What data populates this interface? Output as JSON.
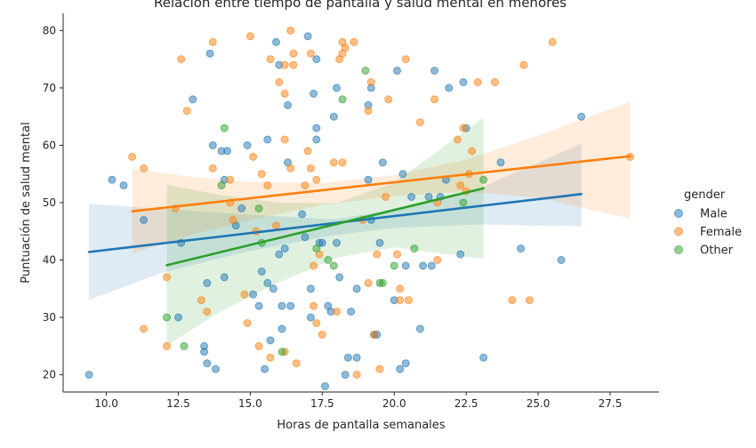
{
  "chart_data": {
    "type": "scatter",
    "title": "Relación entre tiempo de pantalla y salud mental en menores",
    "xlabel": "Horas de pantalla semanales",
    "ylabel": "Puntuación de salud mental",
    "xlim": [
      8.5,
      29.2
    ],
    "ylim": [
      17,
      83
    ],
    "xticks": [
      10.0,
      12.5,
      15.0,
      17.5,
      20.0,
      22.5,
      25.0,
      27.5
    ],
    "xtick_labels": [
      "10.0",
      "12.5",
      "15.0",
      "17.5",
      "20.0",
      "22.5",
      "25.0",
      "27.5"
    ],
    "yticks": [
      20,
      30,
      40,
      50,
      60,
      70,
      80
    ],
    "ytick_labels": [
      "20",
      "30",
      "40",
      "50",
      "60",
      "70",
      "80"
    ],
    "grid": false,
    "legend": {
      "title": "gender",
      "placement": "right"
    },
    "series": [
      {
        "name": "Male",
        "color": "#1f77b4",
        "points": [
          [
            9.4,
            20
          ],
          [
            10.2,
            54
          ],
          [
            10.6,
            53
          ],
          [
            11.3,
            47
          ],
          [
            12.5,
            30
          ],
          [
            12.6,
            43
          ],
          [
            13.0,
            68
          ],
          [
            13.4,
            24
          ],
          [
            13.4,
            25
          ],
          [
            13.5,
            36
          ],
          [
            13.5,
            22
          ],
          [
            13.6,
            76
          ],
          [
            13.7,
            60
          ],
          [
            13.8,
            21
          ],
          [
            14.0,
            59
          ],
          [
            14.1,
            37
          ],
          [
            14.1,
            54
          ],
          [
            14.2,
            59
          ],
          [
            14.5,
            46
          ],
          [
            14.7,
            49
          ],
          [
            14.9,
            60
          ],
          [
            15.1,
            34
          ],
          [
            15.3,
            32
          ],
          [
            15.4,
            38
          ],
          [
            15.5,
            21
          ],
          [
            15.6,
            61
          ],
          [
            15.6,
            36
          ],
          [
            15.7,
            26
          ],
          [
            15.8,
            35
          ],
          [
            15.9,
            78
          ],
          [
            16.0,
            41
          ],
          [
            16.0,
            74
          ],
          [
            16.1,
            28
          ],
          [
            16.1,
            32
          ],
          [
            16.2,
            42
          ],
          [
            16.3,
            67
          ],
          [
            16.3,
            57
          ],
          [
            16.4,
            32
          ],
          [
            16.8,
            48
          ],
          [
            16.9,
            44
          ],
          [
            17.0,
            79
          ],
          [
            17.1,
            35
          ],
          [
            17.1,
            30
          ],
          [
            17.2,
            69
          ],
          [
            17.3,
            75
          ],
          [
            17.3,
            61
          ],
          [
            17.3,
            63
          ],
          [
            17.4,
            43
          ],
          [
            17.5,
            43
          ],
          [
            17.6,
            18
          ],
          [
            17.7,
            32
          ],
          [
            17.8,
            31
          ],
          [
            17.9,
            65
          ],
          [
            18.0,
            70
          ],
          [
            18.0,
            43
          ],
          [
            18.1,
            37
          ],
          [
            18.3,
            20
          ],
          [
            18.4,
            23
          ],
          [
            18.5,
            31
          ],
          [
            18.7,
            23
          ],
          [
            18.7,
            35
          ],
          [
            19.1,
            67
          ],
          [
            19.1,
            54
          ],
          [
            19.2,
            70
          ],
          [
            19.2,
            47
          ],
          [
            19.3,
            27
          ],
          [
            19.4,
            27
          ],
          [
            19.5,
            43
          ],
          [
            19.6,
            57
          ],
          [
            20.0,
            33
          ],
          [
            20.1,
            73
          ],
          [
            20.2,
            21
          ],
          [
            20.3,
            55
          ],
          [
            20.4,
            22
          ],
          [
            20.4,
            39
          ],
          [
            20.6,
            51
          ],
          [
            20.9,
            28
          ],
          [
            21.0,
            39
          ],
          [
            21.2,
            51
          ],
          [
            21.3,
            39
          ],
          [
            21.4,
            73
          ],
          [
            21.6,
            51
          ],
          [
            21.8,
            54
          ],
          [
            21.9,
            70
          ],
          [
            22.3,
            41
          ],
          [
            22.4,
            71
          ],
          [
            22.5,
            63
          ],
          [
            23.1,
            23
          ],
          [
            23.7,
            57
          ],
          [
            24.4,
            42
          ],
          [
            25.8,
            40
          ],
          [
            26.5,
            65
          ]
        ],
        "trend": [
          [
            9.4,
            41.4
          ],
          [
            26.5,
            51.5
          ]
        ],
        "band_upper": [
          [
            9.4,
            49.8
          ],
          [
            12.0,
            48.9
          ],
          [
            15.0,
            47.9
          ],
          [
            17.9,
            47.1
          ],
          [
            20.0,
            48.8
          ],
          [
            23.0,
            52.6
          ],
          [
            26.5,
            60.3
          ]
        ],
        "band_lower": [
          [
            9.4,
            33.1
          ],
          [
            12.0,
            37.9
          ],
          [
            15.0,
            41.6
          ],
          [
            17.9,
            44.3
          ],
          [
            20.0,
            45.6
          ],
          [
            23.0,
            46.2
          ],
          [
            26.5,
            45.9
          ]
        ]
      },
      {
        "name": "Female",
        "color": "#ff7f0e",
        "points": [
          [
            10.9,
            58
          ],
          [
            11.3,
            56
          ],
          [
            11.3,
            28
          ],
          [
            12.1,
            37
          ],
          [
            12.1,
            25
          ],
          [
            12.4,
            49
          ],
          [
            12.6,
            75
          ],
          [
            12.8,
            66
          ],
          [
            13.3,
            33
          ],
          [
            13.5,
            31
          ],
          [
            13.7,
            78
          ],
          [
            13.7,
            56
          ],
          [
            14.3,
            54
          ],
          [
            14.3,
            50
          ],
          [
            14.4,
            47
          ],
          [
            14.8,
            34
          ],
          [
            14.9,
            29
          ],
          [
            15.0,
            79
          ],
          [
            15.1,
            58
          ],
          [
            15.2,
            45
          ],
          [
            15.3,
            25
          ],
          [
            15.4,
            55
          ],
          [
            15.6,
            53
          ],
          [
            15.7,
            23
          ],
          [
            15.7,
            75
          ],
          [
            15.9,
            46
          ],
          [
            16.0,
            71
          ],
          [
            16.2,
            24
          ],
          [
            16.2,
            74
          ],
          [
            16.2,
            69
          ],
          [
            16.2,
            61
          ],
          [
            16.4,
            80
          ],
          [
            16.4,
            56
          ],
          [
            16.5,
            76
          ],
          [
            16.5,
            74
          ],
          [
            16.6,
            22
          ],
          [
            16.9,
            53
          ],
          [
            17.0,
            59
          ],
          [
            17.1,
            76
          ],
          [
            17.1,
            56
          ],
          [
            17.2,
            32
          ],
          [
            17.2,
            39
          ],
          [
            17.3,
            29
          ],
          [
            17.3,
            54
          ],
          [
            17.4,
            41
          ],
          [
            17.5,
            27
          ],
          [
            17.9,
            57
          ],
          [
            18.0,
            31
          ],
          [
            18.1,
            75
          ],
          [
            18.2,
            78
          ],
          [
            18.2,
            76
          ],
          [
            18.2,
            57
          ],
          [
            18.3,
            77
          ],
          [
            18.6,
            78
          ],
          [
            18.7,
            20
          ],
          [
            18.9,
            47
          ],
          [
            19.1,
            66
          ],
          [
            19.1,
            36
          ],
          [
            19.2,
            71
          ],
          [
            19.3,
            27
          ],
          [
            19.4,
            41
          ],
          [
            19.5,
            21
          ],
          [
            19.7,
            51
          ],
          [
            19.8,
            68
          ],
          [
            20.1,
            41
          ],
          [
            20.2,
            35
          ],
          [
            20.2,
            33
          ],
          [
            20.4,
            75
          ],
          [
            20.5,
            33
          ],
          [
            20.9,
            64
          ],
          [
            21.4,
            68
          ],
          [
            21.5,
            40
          ],
          [
            21.5,
            50
          ],
          [
            22.2,
            61
          ],
          [
            22.3,
            53
          ],
          [
            22.4,
            63
          ],
          [
            22.5,
            52
          ],
          [
            22.6,
            55
          ],
          [
            22.7,
            59
          ],
          [
            22.9,
            71
          ],
          [
            23.5,
            71
          ],
          [
            24.1,
            33
          ],
          [
            24.5,
            74
          ],
          [
            24.7,
            33
          ],
          [
            25.5,
            78
          ],
          [
            28.2,
            58
          ]
        ],
        "trend": [
          [
            10.9,
            48.5
          ],
          [
            28.2,
            58.1
          ]
        ],
        "band_upper": [
          [
            10.9,
            55.9
          ],
          [
            13.0,
            54.5
          ],
          [
            15.0,
            53.6
          ],
          [
            17.5,
            53.4
          ],
          [
            20.0,
            54.8
          ],
          [
            22.5,
            57.5
          ],
          [
            25.0,
            61.7
          ],
          [
            28.2,
            67.6
          ]
        ],
        "band_lower": [
          [
            10.9,
            41.1
          ],
          [
            13.0,
            44.5
          ],
          [
            15.0,
            47.0
          ],
          [
            17.5,
            49.6
          ],
          [
            20.0,
            51.1
          ],
          [
            22.5,
            51.9
          ],
          [
            25.0,
            50.9
          ],
          [
            28.2,
            47.2
          ]
        ]
      },
      {
        "name": "Other",
        "color": "#2ca02c",
        "points": [
          [
            12.1,
            30
          ],
          [
            12.7,
            25
          ],
          [
            14.0,
            53
          ],
          [
            14.1,
            63
          ],
          [
            15.3,
            49
          ],
          [
            15.4,
            43
          ],
          [
            16.1,
            24
          ],
          [
            17.3,
            42
          ],
          [
            17.7,
            40
          ],
          [
            17.9,
            39
          ],
          [
            18.2,
            68
          ],
          [
            19.0,
            73
          ],
          [
            19.5,
            36
          ],
          [
            19.6,
            36
          ],
          [
            20.0,
            39
          ],
          [
            20.7,
            42
          ],
          [
            22.4,
            50
          ],
          [
            23.1,
            54
          ]
        ],
        "trend": [
          [
            12.1,
            39.1
          ],
          [
            23.1,
            52.5
          ]
        ],
        "band_upper": [
          [
            12.1,
            53.1
          ],
          [
            14.0,
            51.3
          ],
          [
            16.0,
            50.0
          ],
          [
            18.0,
            49.9
          ],
          [
            20.0,
            53.5
          ],
          [
            23.1,
            64.8
          ]
        ],
        "band_lower": [
          [
            12.1,
            25.1
          ],
          [
            14.0,
            31.1
          ],
          [
            16.0,
            36.1
          ],
          [
            18.0,
            40.4
          ],
          [
            20.0,
            42.2
          ],
          [
            23.1,
            40.2
          ]
        ]
      }
    ]
  }
}
